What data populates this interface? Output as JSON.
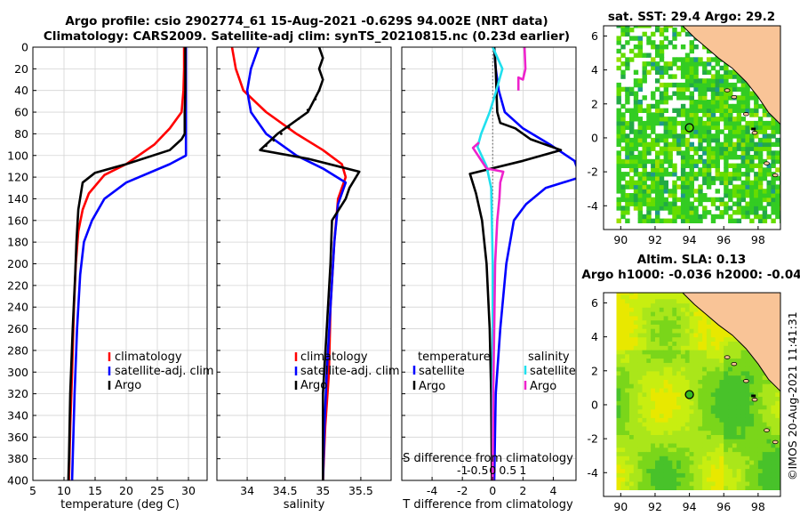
{
  "header": {
    "title_line1": "Argo profile: csio 2902774_61 15-Aug-2021 -0.629S 94.002E (NRT data)",
    "title_line2": "Climatology: CARS2009. Satellite-adj clim: synTS_20210815.nc (0.23d earlier)"
  },
  "copyright": "©IMOS 20-Aug-2021 11:41:31",
  "colors": {
    "climatology": "#ff0000",
    "satellite": "#0000ff",
    "argo": "#000000",
    "sal_sat": "#20e0ee",
    "sal_argo": "#ee22cc",
    "land": "#f9c497",
    "grid": "#d0d0d0"
  },
  "chart_data": [
    {
      "id": "temp",
      "type": "line",
      "xlabel": "temperature (deg C)",
      "ylabel": "depth",
      "xlim": [
        5,
        33
      ],
      "ylim": [
        400,
        0
      ],
      "xticks": [
        5,
        10,
        15,
        20,
        25,
        30
      ],
      "yticks": [
        0,
        20,
        40,
        60,
        80,
        100,
        120,
        140,
        160,
        180,
        200,
        220,
        240,
        260,
        280,
        300,
        320,
        340,
        360,
        380,
        400
      ],
      "legend": [
        "climatology",
        "satellite-adj. clim",
        "Argo"
      ],
      "series": [
        {
          "name": "climatology",
          "color": "#ff0000",
          "points": [
            [
              29.3,
              0
            ],
            [
              29.3,
              20
            ],
            [
              29.2,
              40
            ],
            [
              28.9,
              60
            ],
            [
              27.0,
              75
            ],
            [
              24.5,
              90
            ],
            [
              20.0,
              108
            ],
            [
              16.5,
              118
            ],
            [
              14.0,
              135
            ],
            [
              13.0,
              150
            ],
            [
              12.3,
              170
            ],
            [
              11.9,
              200
            ],
            [
              11.6,
              240
            ],
            [
              11.3,
              300
            ],
            [
              11.0,
              350
            ],
            [
              10.8,
              400
            ]
          ]
        },
        {
          "name": "satellite-adj. clim",
          "color": "#0000ff",
          "points": [
            [
              29.6,
              0
            ],
            [
              29.6,
              20
            ],
            [
              29.6,
              40
            ],
            [
              29.6,
              60
            ],
            [
              29.6,
              80
            ],
            [
              29.6,
              100
            ],
            [
              27.0,
              108
            ],
            [
              20.0,
              125
            ],
            [
              16.5,
              140
            ],
            [
              14.5,
              160
            ],
            [
              13.2,
              180
            ],
            [
              12.6,
              210
            ],
            [
              12.1,
              260
            ],
            [
              11.7,
              320
            ],
            [
              11.3,
              400
            ]
          ]
        },
        {
          "name": "Argo",
          "color": "#000000",
          "points": [
            [
              29.5,
              0
            ],
            [
              29.5,
              20
            ],
            [
              29.5,
              40
            ],
            [
              29.4,
              60
            ],
            [
              29.4,
              80
            ],
            [
              28.9,
              85
            ],
            [
              27.0,
              95
            ],
            [
              20.0,
              108
            ],
            [
              15.0,
              116
            ],
            [
              13.0,
              125
            ],
            [
              12.3,
              150
            ],
            [
              12.0,
              180
            ],
            [
              11.8,
              210
            ],
            [
              11.4,
              260
            ],
            [
              11.0,
              320
            ],
            [
              10.8,
              380
            ],
            [
              10.7,
              400
            ]
          ]
        }
      ]
    },
    {
      "id": "sal",
      "type": "line",
      "xlabel": "salinity",
      "xlim": [
        33.6,
        35.9
      ],
      "ylim": [
        400,
        0
      ],
      "xticks": [
        34,
        34.5,
        35,
        35.5
      ],
      "xticklabels": [
        "34",
        "34.5",
        "35",
        "35.5"
      ],
      "legend": [
        "climatology",
        "satellite-adj. clim",
        "Argo"
      ],
      "series": [
        {
          "name": "climatology",
          "color": "#ff0000",
          "points": [
            [
              33.8,
              0
            ],
            [
              33.85,
              20
            ],
            [
              33.95,
              40
            ],
            [
              34.25,
              60
            ],
            [
              34.65,
              80
            ],
            [
              35.0,
              95
            ],
            [
              35.25,
              108
            ],
            [
              35.3,
              120
            ],
            [
              35.2,
              140
            ],
            [
              35.15,
              180
            ],
            [
              35.1,
              240
            ],
            [
              35.08,
              300
            ],
            [
              35.03,
              350
            ],
            [
              35.0,
              400
            ]
          ]
        },
        {
          "name": "satellite-adj. clim",
          "color": "#0000ff",
          "points": [
            [
              34.15,
              0
            ],
            [
              34.05,
              20
            ],
            [
              34.0,
              40
            ],
            [
              34.05,
              60
            ],
            [
              34.25,
              80
            ],
            [
              34.65,
              100
            ],
            [
              35.0,
              112
            ],
            [
              35.3,
              125
            ],
            [
              35.2,
              145
            ],
            [
              35.15,
              180
            ],
            [
              35.1,
              240
            ],
            [
              35.05,
              300
            ],
            [
              35.02,
              350
            ],
            [
              35.0,
              400
            ]
          ]
        },
        {
          "name": "Argo",
          "color": "#000000",
          "points": [
            [
              34.95,
              0
            ],
            [
              35.0,
              10
            ],
            [
              34.95,
              20
            ],
            [
              35.0,
              30
            ],
            [
              34.95,
              40
            ],
            [
              34.8,
              60
            ],
            [
              34.4,
              80
            ],
            [
              34.17,
              95
            ],
            [
              34.8,
              103
            ],
            [
              35.48,
              115
            ],
            [
              35.35,
              130
            ],
            [
              35.3,
              140
            ],
            [
              35.12,
              160
            ],
            [
              35.1,
              200
            ],
            [
              35.05,
              260
            ],
            [
              35.0,
              320
            ],
            [
              35.0,
              400
            ]
          ]
        }
      ]
    },
    {
      "id": "diff",
      "type": "line",
      "xlabel": "T difference from climatology",
      "xlabel_top": "S difference from climatology",
      "xlim": [
        -6,
        5.5
      ],
      "ylim": [
        400,
        0
      ],
      "xticks": [
        -4,
        -2,
        0,
        2,
        4
      ],
      "xticklabels": [
        "-4",
        "-2",
        "0",
        "2",
        "4"
      ],
      "sal_xticks": [
        -1,
        -0.5,
        0,
        0.5,
        1
      ],
      "sal_xticklabels": [
        "-1",
        "-0.5",
        "0",
        "0.5",
        "1"
      ],
      "legend_titles": [
        "temperature",
        "salinity"
      ],
      "legend": [
        "satellite",
        "Argo",
        "satellite",
        "Argo"
      ],
      "series": [
        {
          "name": "temperature satellite",
          "color": "#0000ff",
          "points": [
            [
              0.1,
              0
            ],
            [
              0.2,
              20
            ],
            [
              0.4,
              40
            ],
            [
              0.8,
              60
            ],
            [
              2.0,
              75
            ],
            [
              3.8,
              90
            ],
            [
              5.4,
              105
            ],
            [
              5.8,
              120
            ],
            [
              3.5,
              130
            ],
            [
              2.2,
              145
            ],
            [
              1.4,
              160
            ],
            [
              0.9,
              200
            ],
            [
              0.5,
              260
            ],
            [
              0.2,
              320
            ],
            [
              0.1,
              400
            ]
          ]
        },
        {
          "name": "temperature Argo",
          "color": "#000000",
          "points": [
            [
              0.1,
              0
            ],
            [
              0.2,
              20
            ],
            [
              0.25,
              40
            ],
            [
              0.3,
              60
            ],
            [
              0.5,
              70
            ],
            [
              1.5,
              75
            ],
            [
              2.5,
              85
            ],
            [
              4.5,
              95
            ],
            [
              2.0,
              105
            ],
            [
              -1.5,
              117
            ],
            [
              -1.1,
              135
            ],
            [
              -0.7,
              160
            ],
            [
              -0.4,
              200
            ],
            [
              -0.2,
              260
            ],
            [
              -0.1,
              320
            ],
            [
              -0.05,
              400
            ]
          ]
        },
        {
          "name": "salinity satellite",
          "color": "#20e0ee",
          "points": [
            [
              0.0,
              0
            ],
            [
              0.32,
              20
            ],
            [
              0.12,
              40
            ],
            [
              -0.1,
              60
            ],
            [
              -0.38,
              80
            ],
            [
              -0.5,
              92
            ],
            [
              -0.2,
              110
            ],
            [
              -0.05,
              130
            ],
            [
              0.0,
              200
            ],
            [
              0.0,
              400
            ]
          ]
        },
        {
          "name": "salinity Argo",
          "color": "#ee22cc",
          "points": [
            [
              1.05,
              0
            ],
            [
              1.08,
              20
            ],
            [
              1.0,
              30
            ],
            [
              0.85,
              28
            ],
            [
              0.85,
              40
            ]
          ]
        },
        {
          "name": "salinity Argo (lower)",
          "color": "#ee22cc",
          "points": [
            [
              -0.45,
              88
            ],
            [
              -0.65,
              93
            ],
            [
              -0.2,
              112
            ],
            [
              0.35,
              115
            ],
            [
              0.25,
              125
            ],
            [
              0.22,
              140
            ],
            [
              0.15,
              160
            ],
            [
              0.08,
              200
            ],
            [
              0.05,
              260
            ],
            [
              0.02,
              320
            ],
            [
              0.0,
              400
            ]
          ]
        }
      ]
    },
    {
      "id": "map_sst",
      "type": "heatmap",
      "title": "sat. SST: 29.4 Argo: 29.2",
      "xlim": [
        89,
        99.3
      ],
      "ylim": [
        -5.4,
        6.6
      ],
      "xticks": [
        90,
        92,
        94,
        96,
        98
      ],
      "yticks": [
        -4,
        -2,
        0,
        2,
        4,
        6
      ],
      "marker": [
        94.0,
        0.6
      ]
    },
    {
      "id": "map_sla",
      "type": "heatmap",
      "title": "Altim. SLA: 0.13",
      "title2": "Argo h1000: -0.036 h2000: -0.04",
      "xlim": [
        89,
        99.3
      ],
      "ylim": [
        -5.4,
        6.6
      ],
      "xticks": [
        90,
        92,
        94,
        96,
        98
      ],
      "yticks": [
        -4,
        -2,
        0,
        2,
        4,
        6
      ],
      "marker": [
        94.0,
        0.6
      ]
    }
  ]
}
